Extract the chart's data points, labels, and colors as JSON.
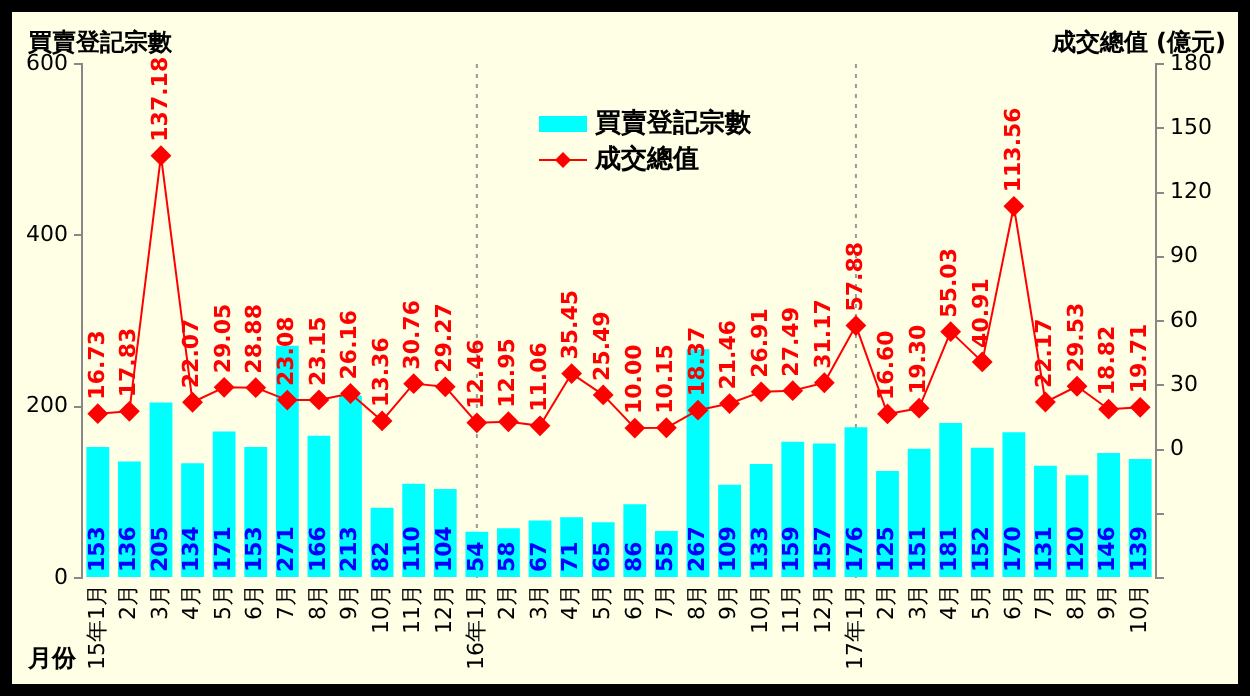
{
  "chart_data": {
    "type": "bar",
    "ylabel": "買賣登記宗數",
    "y2label": "成交總值 (億元)",
    "xlabel": "月份",
    "categories": [
      "15年1月",
      "2月",
      "3月",
      "4月",
      "5月",
      "6月",
      "7月",
      "8月",
      "9月",
      "10月",
      "11月",
      "12月",
      "16年1月",
      "2月",
      "3月",
      "4月",
      "5月",
      "6月",
      "7月",
      "8月",
      "9月",
      "10月",
      "11月",
      "12月",
      "17年1月",
      "2月",
      "3月",
      "4月",
      "5月",
      "6月",
      "7月",
      "8月",
      "9月",
      "10月"
    ],
    "series": [
      {
        "name": "買賣登記宗數",
        "color": "#00ffff",
        "values": [
          153,
          136,
          205,
          134,
          171,
          153,
          271,
          166,
          213,
          82,
          110,
          104,
          54,
          58,
          67,
          71,
          65,
          86,
          55,
          267,
          109,
          133,
          159,
          157,
          176,
          125,
          151,
          181,
          152,
          170,
          131,
          120,
          146,
          139
        ],
        "value_labels": [
          "153",
          "136",
          "205",
          "134",
          "171",
          "153",
          "271",
          "166",
          "213",
          "82",
          "110",
          "104",
          "54",
          "58",
          "67",
          "71",
          "65",
          "86",
          "55",
          "267",
          "109",
          "133",
          "159",
          "157",
          "176",
          "125",
          "151",
          "181",
          "152",
          "170",
          "131",
          "120",
          "146",
          "139"
        ]
      },
      {
        "name": "成交總值",
        "type": "line",
        "axis": "y2",
        "color": "#ff0000",
        "marker": "diamond",
        "values": [
          16.73,
          17.83,
          137.18,
          22.07,
          29.05,
          28.88,
          23.08,
          23.15,
          26.16,
          13.36,
          30.76,
          29.27,
          12.46,
          12.95,
          11.06,
          35.45,
          25.49,
          10.0,
          10.15,
          18.37,
          21.46,
          26.91,
          27.49,
          31.17,
          57.88,
          16.6,
          19.3,
          55.03,
          40.91,
          113.56,
          22.17,
          29.53,
          18.82,
          19.71
        ],
        "value_labels": [
          "16.73",
          "17.83",
          "137.18",
          "22.07",
          "29.05",
          "28.88",
          "23.08",
          "23.15",
          "26.16",
          "13.36",
          "30.76",
          "29.27",
          "12.46",
          "12.95",
          "11.06",
          "35.45",
          "25.49",
          "10.00",
          "10.15",
          "18.37",
          "21.46",
          "26.91",
          "27.49",
          "31.17",
          "57.88",
          "16.60",
          "19.30",
          "55.03",
          "40.91",
          "113.56",
          "22.17",
          "29.53",
          "18.82",
          "19.71"
        ]
      }
    ],
    "ylim": [
      0,
      600
    ],
    "yticks": [
      0,
      200,
      400,
      600
    ],
    "y2lim": [
      -60,
      180
    ],
    "y2ticks": [
      {
        "value": -60,
        "label": null
      },
      {
        "value": -30,
        "label": null
      },
      0,
      30,
      60,
      90,
      120,
      150,
      180
    ],
    "ref_lines": [
      {
        "axis": "x",
        "value": "16年1月",
        "line_style": "dotted",
        "color": "#999999"
      },
      {
        "axis": "x",
        "value": "17年1月",
        "line_style": "dotted",
        "color": "#999999"
      }
    ],
    "legend": "top",
    "grid": false
  }
}
